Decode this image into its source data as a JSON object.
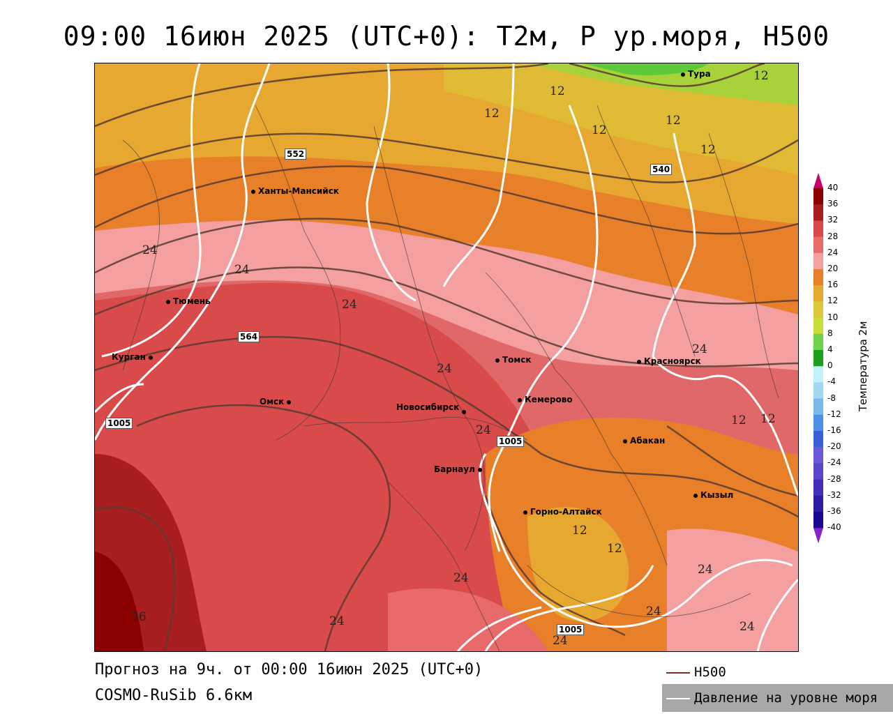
{
  "title": "09:00 16июн 2025 (UTC+0): T2м, P ур.моря, H500",
  "footer": {
    "line1": "Прогноз на 9ч. от 00:00 16июн 2025 (UTC+0)",
    "line2": "COSMO-RuSib 6.6км"
  },
  "legend": {
    "h500": "H500",
    "slp": "Давление на уровне моря"
  },
  "colorbar": {
    "title": "Температура 2м",
    "ticks": [
      "40",
      "36",
      "32",
      "28",
      "24",
      "20",
      "16",
      "12",
      "10",
      "8",
      "4",
      "0",
      "-4",
      "-8",
      "-12",
      "-16",
      "-20",
      "-24",
      "-28",
      "-32",
      "-36",
      "-40"
    ],
    "colors": [
      "#c8006e",
      "#8b0000",
      "#a81e1e",
      "#d84848",
      "#e86a6a",
      "#f4a0a0",
      "#e8802a",
      "#e6a830",
      "#dcc83a",
      "#c8dc3a",
      "#6ed24a",
      "#1aa01a",
      "#c0f0f8",
      "#a0d8f4",
      "#78b8ee",
      "#4c90e8",
      "#3a60d8",
      "#6a5ad8",
      "#5a46c8",
      "#4430b8",
      "#2e1ca0",
      "#1a0890",
      "#8a20c8"
    ]
  },
  "cities": [
    {
      "name": "Тура"
    },
    {
      "name": "Ханты-Мансийск"
    },
    {
      "name": "Тюмень"
    },
    {
      "name": "Курган"
    },
    {
      "name": "Омск"
    },
    {
      "name": "Томск"
    },
    {
      "name": "Красноярск"
    },
    {
      "name": "Кемерово"
    },
    {
      "name": "Новосибирск"
    },
    {
      "name": "Абакан"
    },
    {
      "name": "Барнаул"
    },
    {
      "name": "Кызыл"
    },
    {
      "name": "Горно-Алтайск"
    }
  ],
  "contour_labels": {
    "temperature": [
      "12",
      "12",
      "12",
      "12",
      "12",
      "12",
      "12",
      "12",
      "12",
      "12",
      "24",
      "24",
      "24",
      "24",
      "24",
      "24",
      "24",
      "24",
      "24",
      "24",
      "24",
      "24",
      "36"
    ],
    "h500": [
      "552",
      "540",
      "564"
    ],
    "slp": [
      "1005",
      "1005",
      "1005"
    ]
  }
}
